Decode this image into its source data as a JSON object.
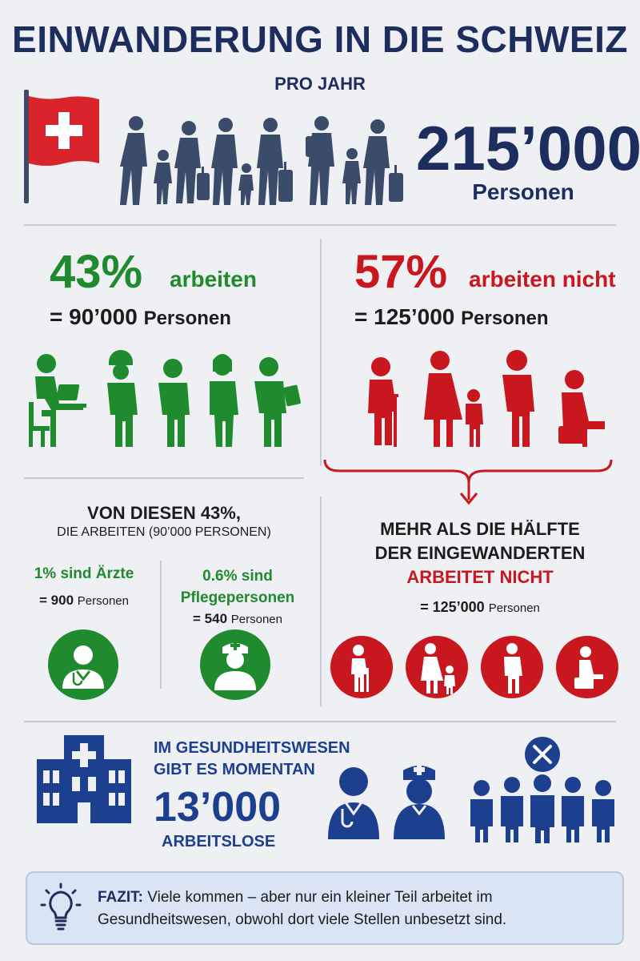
{
  "header": {
    "title": "EINWANDERUNG IN DIE SCHWEIZ",
    "subtitle": "PRO JAHR"
  },
  "total": {
    "number": "215’000",
    "label": "Personen"
  },
  "working": {
    "percent": "43%",
    "label": "arbeiten",
    "equals": "= 90’000",
    "unit": "Personen",
    "icons": [
      "desk-worker-icon",
      "construction-worker-icon",
      "worker-icon",
      "nurse-worker-icon",
      "tablet-worker-icon"
    ]
  },
  "not_working": {
    "percent": "57%",
    "label": "arbeiten nicht",
    "equals": "= 125’000",
    "unit": "Personen",
    "icons": [
      "elderly-person-icon",
      "mother-child-icon",
      "standing-person-icon",
      "sitting-person-icon"
    ]
  },
  "subset": {
    "title": "VON DIESEN 43%,",
    "subtitle": "DIE ARBEITEN (90’000 PERSONEN)",
    "doctors": {
      "label": "1% sind Ärzte",
      "equals": "= 900",
      "unit": "Personen"
    },
    "nurses": {
      "label_1": "0.6% sind",
      "label_2": "Pflegepersonen",
      "equals": "= 540",
      "unit": "Personen"
    }
  },
  "half": {
    "line1": "MEHR ALS DIE HÄLFTE",
    "line2": "DER EINGEWANDERTEN",
    "line3": "ARBEITET NICHT",
    "equals": "= 125’000",
    "unit": "Personen"
  },
  "health": {
    "line1": "IM GESUNDHEITSWESEN",
    "line2": "GIBT ES MOMENTAN",
    "number": "13’000",
    "line3": "ARBEITSLOSE"
  },
  "fazit": {
    "label": "FAZIT:",
    "line1": "Viele kommen – aber nur ein kleiner Teil arbeitet im",
    "line2": "Gesundheitswesen, obwohl dort viele Stellen unbesetzt sind."
  },
  "colors": {
    "navy": "#1c2d5e",
    "green": "#1f8a2e",
    "red": "#c8171e",
    "blue": "#1c3f8f",
    "silhouette": "#3b4c6b",
    "background": "#eef0f4"
  }
}
